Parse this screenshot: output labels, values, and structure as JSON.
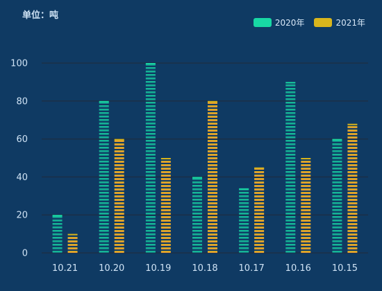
{
  "unit_label": "单位：吨",
  "colors": {
    "series1_top": "#18d8a4",
    "series1_bottom": "#0f6f7c",
    "series2_top": "#d9b51c",
    "series2_bottom": "#e0913a",
    "axis_text": "#cfe3f5",
    "grid": "#1b2f47"
  },
  "chart_data": {
    "type": "bar",
    "title": "",
    "xlabel": "",
    "ylabel": "",
    "categories": [
      "10.21",
      "10.20",
      "10.19",
      "10.18",
      "10.17",
      "10.16",
      "10.15"
    ],
    "series": [
      {
        "name": "2020年",
        "values": [
          20,
          80,
          100,
          40,
          34,
          90,
          60
        ]
      },
      {
        "name": "2021年",
        "values": [
          10,
          60,
          50,
          80,
          45,
          50,
          68
        ]
      }
    ],
    "ylim": [
      0,
      100
    ],
    "yticks": [
      0,
      20,
      40,
      60,
      80,
      100
    ],
    "grid": true,
    "legend_position": "top-right"
  }
}
